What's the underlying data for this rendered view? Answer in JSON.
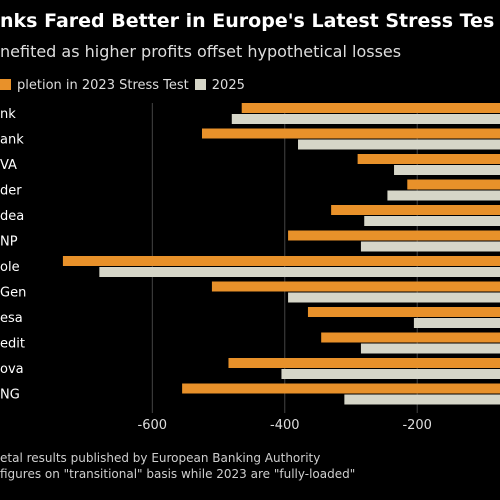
{
  "title": "nks Fared Better in Europe's Latest Stress Tes",
  "subtitle": "nefited as higher profits offset hypothetical losses",
  "legend": {
    "a": "pletion in 2023 Stress Test",
    "b": "2025"
  },
  "colors": {
    "a": "#e8912a",
    "b": "#d6d6c8",
    "background": "#000000",
    "grid": "#444444"
  },
  "source": [
    "etal results published by European Banking Authority",
    "figures on \"transitional\" basis while 2023 are \"fully-loaded\""
  ],
  "chart_data": {
    "type": "bar",
    "orientation": "horizontal",
    "categories": [
      "nk",
      "ank",
      "VA",
      "der",
      "dea",
      "NP",
      "ole",
      "Gen",
      "esa",
      "edit",
      "ova",
      "NG"
    ],
    "series": [
      {
        "name": "pletion in 2023 Stress Test",
        "values": [
          -465,
          -525,
          -290,
          -215,
          -330,
          -395,
          -735,
          -510,
          -365,
          -345,
          -485,
          -555
        ]
      },
      {
        "name": "2025",
        "values": [
          -480,
          -380,
          -235,
          -245,
          -280,
          -285,
          -680,
          -395,
          -205,
          -285,
          -405,
          -310
        ]
      }
    ],
    "xticks": [
      -600,
      -400,
      -200
    ],
    "xlim": [
      -830,
      -75
    ],
    "grid": true
  }
}
